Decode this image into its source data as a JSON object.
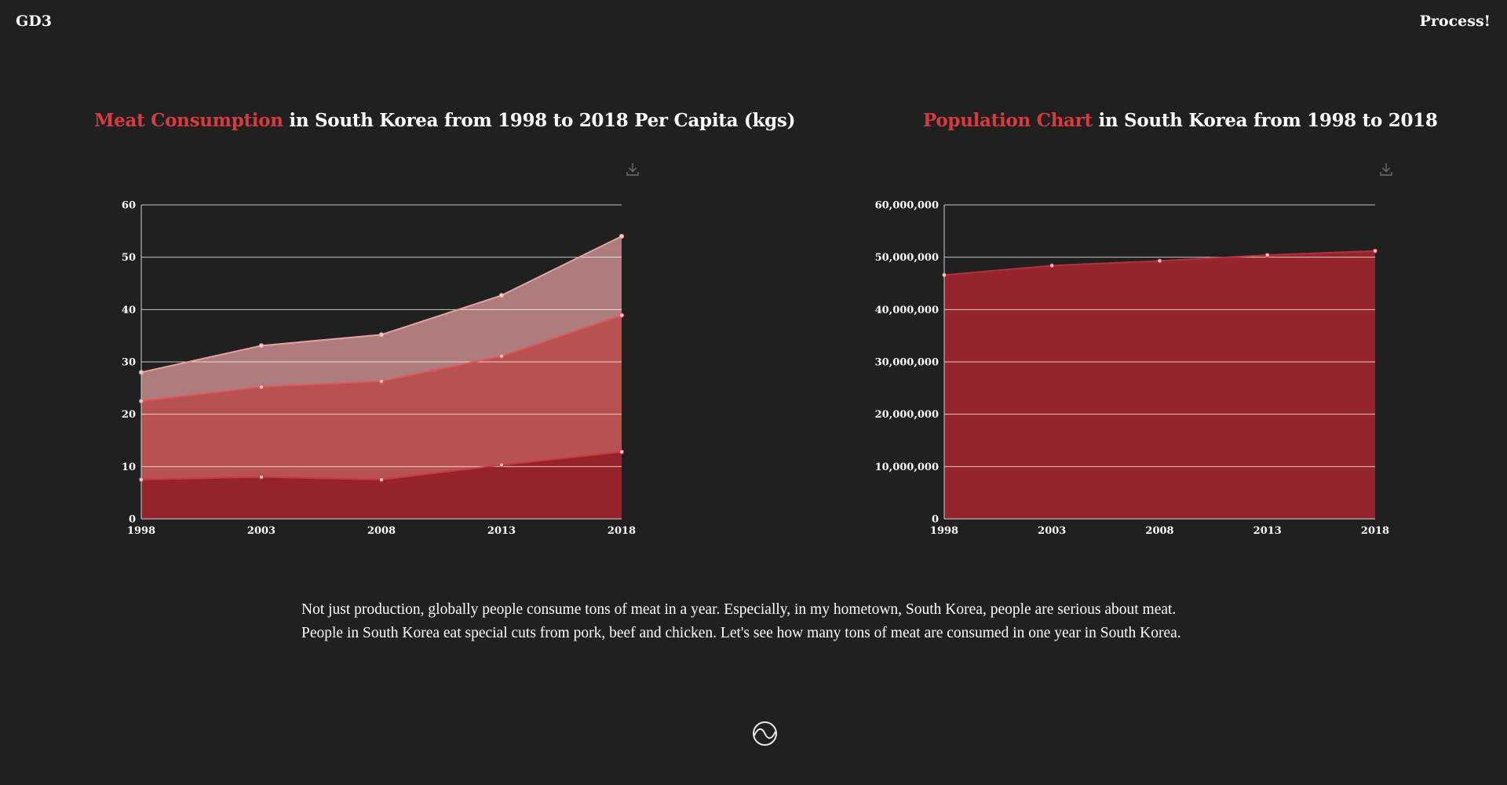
{
  "header": {
    "brand": "GD3",
    "process_link": "Process!"
  },
  "meat_chart": {
    "title_accent": "Meat Consumption",
    "title_rest": " in South Korea from 1998 to 2018 Per Capita (kgs)",
    "download_icon": "download-icon"
  },
  "population_chart": {
    "title_accent": "Population Chart",
    "title_rest": " in South Korea from 1998 to 2018",
    "download_icon": "download-icon"
  },
  "description": {
    "line1": "Not just production, globally people consume tons of meat in a year. Especially, in my hometown, South Korea, people are serious about meat.",
    "line2": "People in South Korea eat special cuts from pork, beef and chicken. Let's see how many tons of meat are consumed in one year in South Korea."
  },
  "footer": {
    "logo_icon": "circle-wave-logo-icon"
  },
  "colors": {
    "background": "#202020",
    "accent": "#d93a3e",
    "dark_red": "#96232b",
    "mid_red": "#b85250",
    "light_red": "#ae7c7c",
    "population_fill": "#96242c"
  },
  "chart_data": [
    {
      "type": "area",
      "stacked": true,
      "x": [
        1998,
        2003,
        2008,
        2013,
        2018
      ],
      "ylim": [
        0,
        60
      ],
      "yticks": [
        0,
        10,
        20,
        30,
        40,
        50,
        60
      ],
      "ytick_labels": [
        "0",
        "10",
        "20",
        "30",
        "40",
        "50",
        "60"
      ],
      "xtick_labels": [
        "1998",
        "2003",
        "2008",
        "2013",
        "2018"
      ],
      "grid": true,
      "series": [
        {
          "color": "#96232b",
          "line": "#c43a3f",
          "cumulative": [
            7.5,
            8,
            7.5,
            10.3,
            12.8
          ]
        },
        {
          "color": "#b85250",
          "line": "#e0575a",
          "cumulative": [
            22.5,
            25.2,
            26.3,
            31.1,
            38.9
          ]
        },
        {
          "color": "#ae7c7c",
          "line": "#e6a0a0",
          "cumulative": [
            28,
            33.1,
            35.2,
            42.7,
            54
          ]
        }
      ]
    },
    {
      "type": "area",
      "x": [
        1998,
        2003,
        2008,
        2013,
        2018
      ],
      "ylim": [
        0,
        60000000
      ],
      "yticks": [
        0,
        10000000,
        20000000,
        30000000,
        40000000,
        50000000,
        60000000
      ],
      "ytick_labels": [
        "0",
        "10,000,000",
        "20,000,000",
        "30,000,000",
        "40,000,000",
        "50,000,000",
        "60,000,000"
      ],
      "xtick_labels": [
        "1998",
        "2003",
        "2008",
        "2013",
        "2018"
      ],
      "grid": true,
      "series": [
        {
          "color": "#96242c",
          "line": "#b3313a",
          "values": [
            46600000,
            48400000,
            49300000,
            50400000,
            51200000
          ]
        }
      ]
    }
  ]
}
